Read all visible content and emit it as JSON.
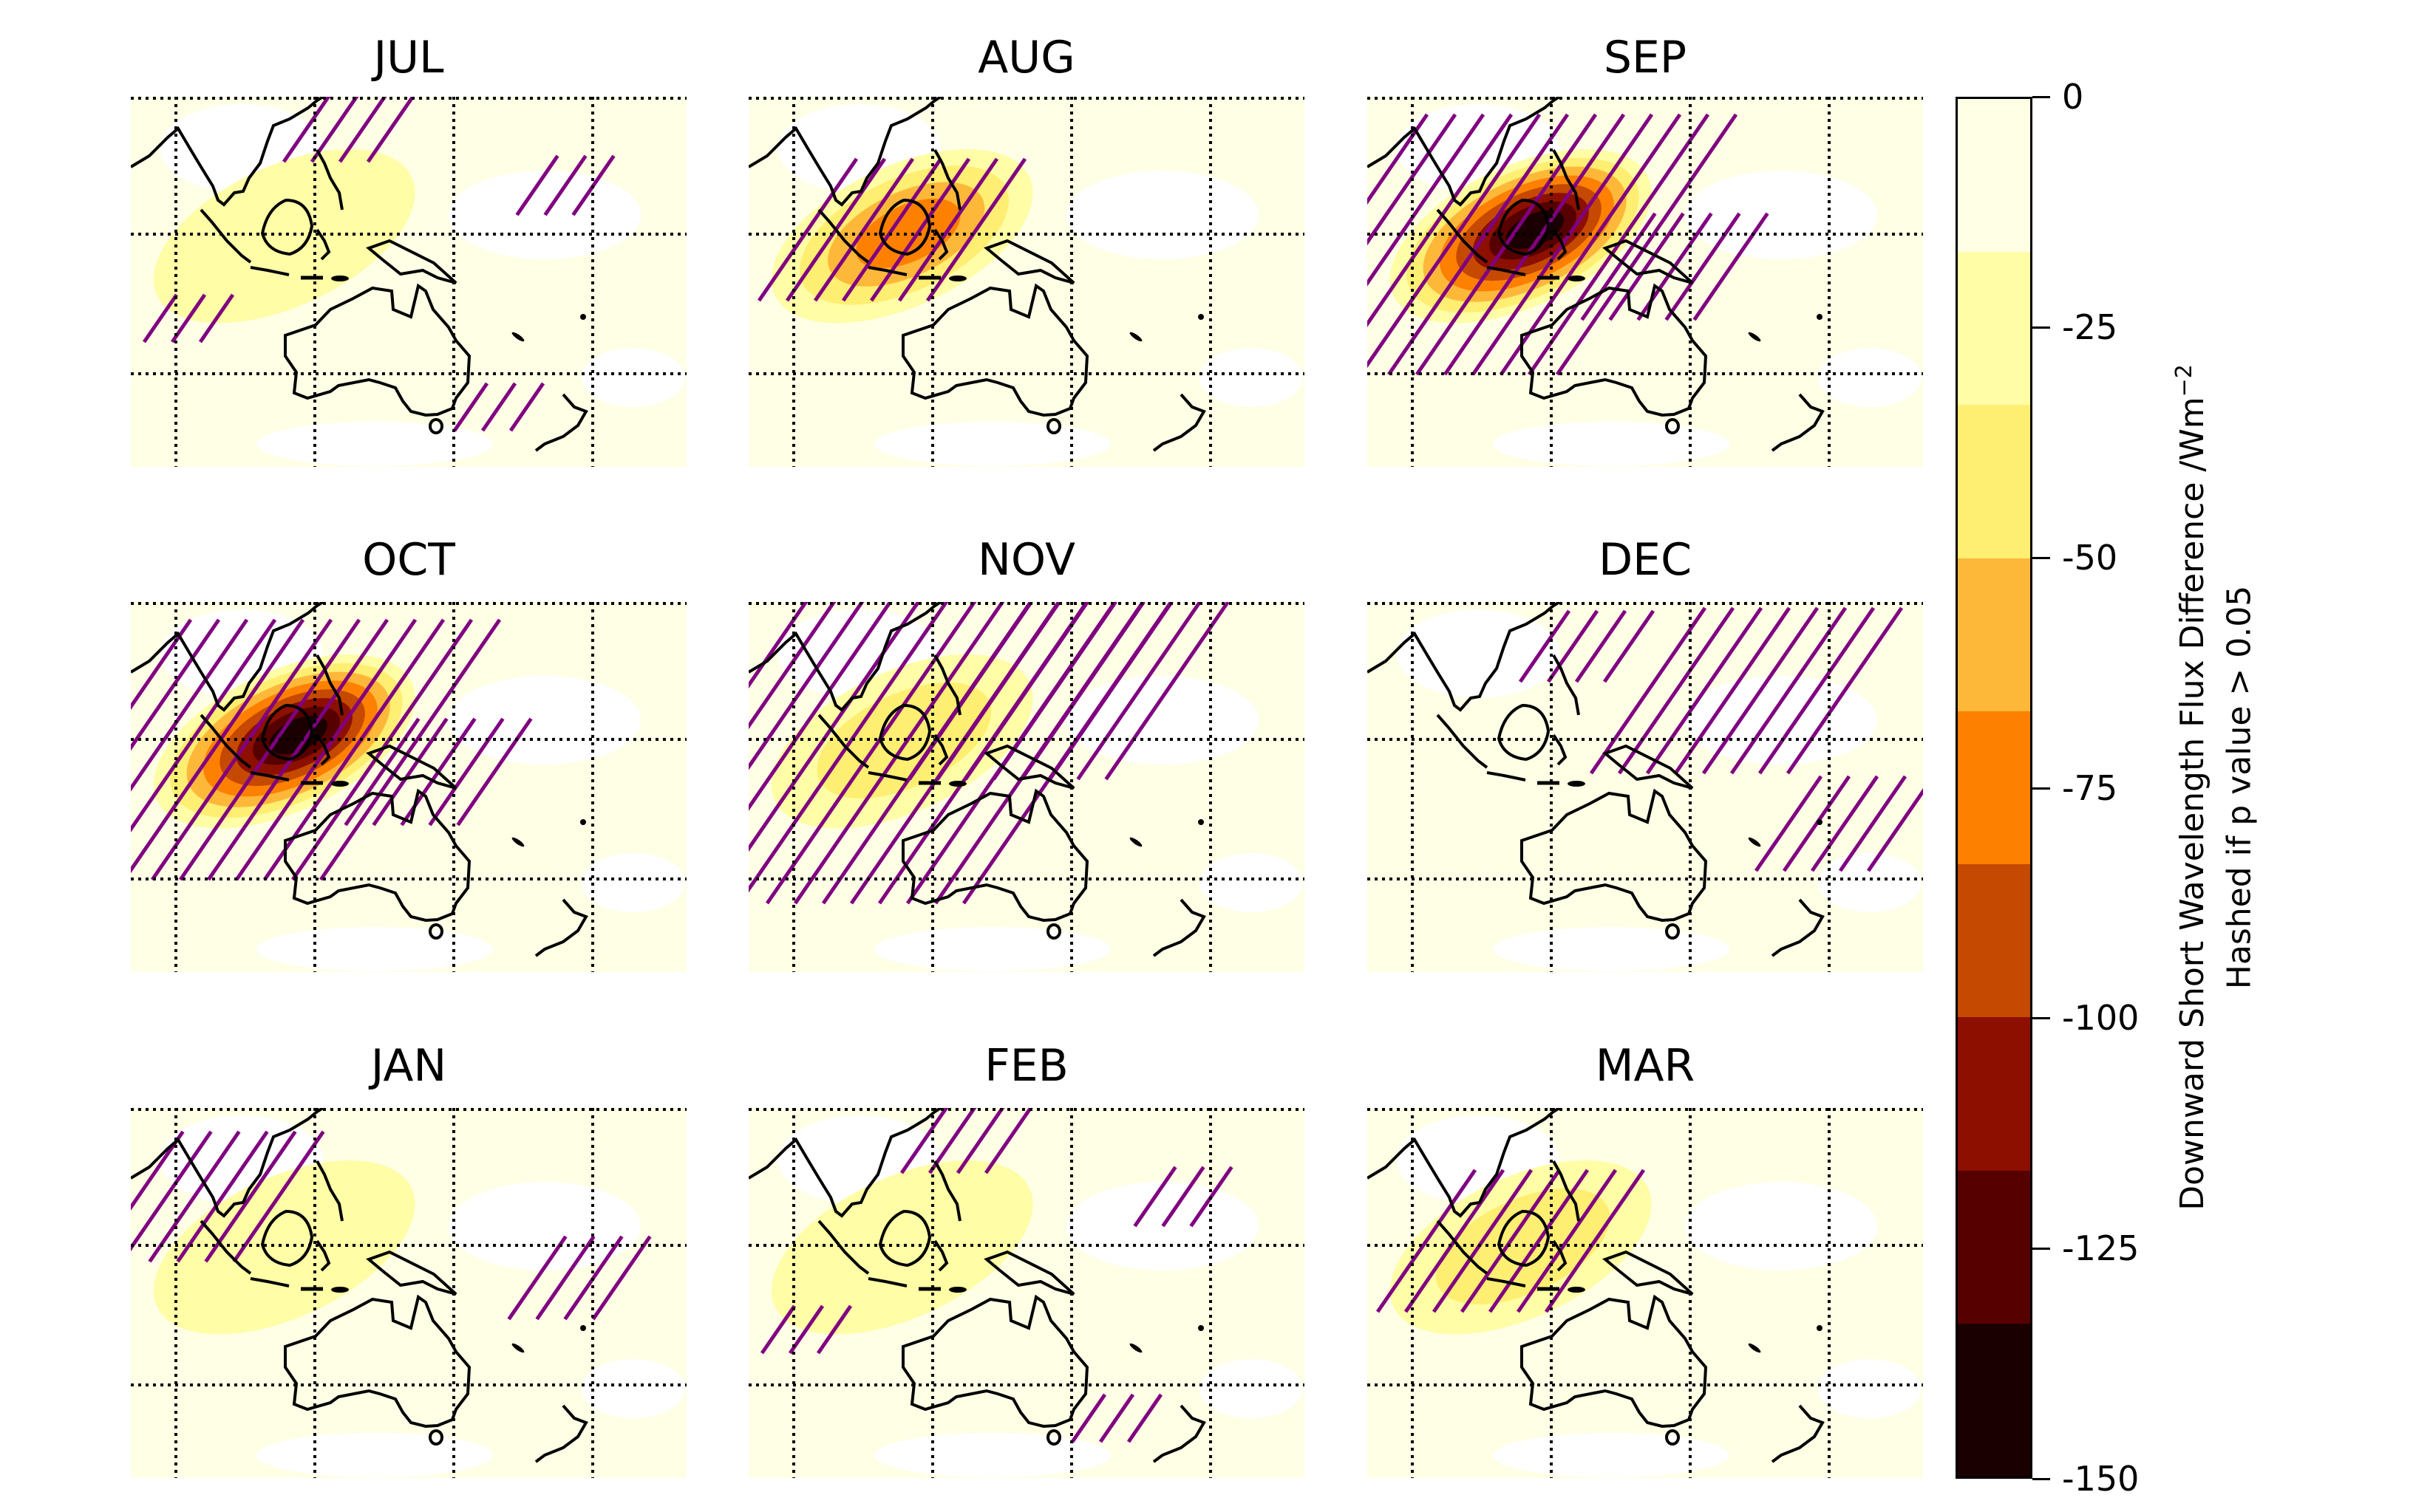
{
  "panels": [
    {
      "title": "JUL",
      "intensity": 0.1,
      "hatch": "sparse"
    },
    {
      "title": "AUG",
      "intensity": 0.45,
      "hatch": "center"
    },
    {
      "title": "SEP",
      "intensity": 1.0,
      "hatch": "wide"
    },
    {
      "title": "OCT",
      "intensity": 0.95,
      "hatch": "wide"
    },
    {
      "title": "NOV",
      "intensity": 0.3,
      "hatch": "full"
    },
    {
      "title": "DEC",
      "intensity": 0.05,
      "hatch": "east"
    },
    {
      "title": "JAN",
      "intensity": 0.12,
      "hatch": "west"
    },
    {
      "title": "FEB",
      "intensity": 0.15,
      "hatch": "sparse"
    },
    {
      "title": "MAR",
      "intensity": 0.3,
      "hatch": "center"
    }
  ],
  "colorbar": {
    "ticks": [
      "0",
      "-25",
      "-50",
      "-75",
      "-100",
      "-125",
      "-150"
    ],
    "range": [
      -150,
      0
    ],
    "colors": [
      "#ffffe6",
      "#fffda6",
      "#feee72",
      "#fdb83a",
      "#fe8000",
      "#c54900",
      "#8c0f00",
      "#570000",
      "#1a0000"
    ],
    "label_line1": "Downward Short Wavelength Flux Difference /Wm",
    "label_superscript": "−2",
    "label_line2": "Hashed if p value > 0.05"
  },
  "colors": {
    "hatch": "#800080",
    "coast": "#000000"
  }
}
